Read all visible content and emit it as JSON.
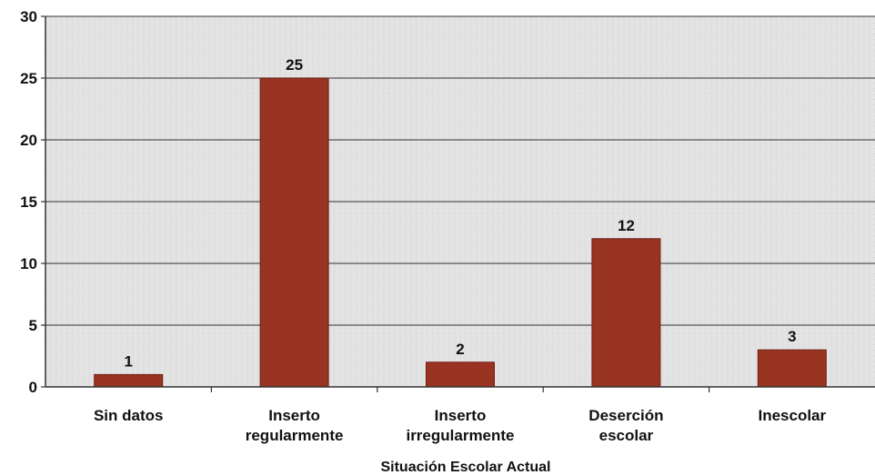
{
  "chart_data": {
    "type": "bar",
    "categories": [
      [
        "Sin datos"
      ],
      [
        "Inserto",
        "regularmente"
      ],
      [
        "Inserto",
        "irregularmente"
      ],
      [
        "Deserción",
        "escolar"
      ],
      [
        "Inescolar"
      ]
    ],
    "values": [
      1,
      25,
      2,
      12,
      3
    ],
    "data_labels": [
      "1",
      "25",
      "2",
      "12",
      "3"
    ],
    "yticks": [
      0,
      5,
      10,
      15,
      20,
      25,
      30
    ],
    "ylim": [
      0,
      30
    ],
    "title": "",
    "xlabel": "Situación Escolar Actual",
    "ylabel": "",
    "grid": true,
    "legend": "none",
    "colors": {
      "bar": "#993322",
      "bar_edge": "#6e1f14",
      "plot_background": "#e3e3e3",
      "gridline": "#555555",
      "axis": "#333333"
    }
  }
}
